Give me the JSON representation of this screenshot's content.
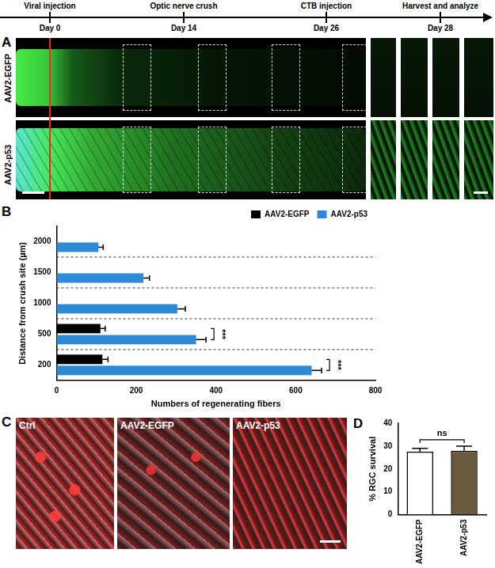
{
  "timeline": {
    "events": [
      {
        "label": "Viral injection",
        "day": "Day 0"
      },
      {
        "label": "Optic nerve crush",
        "day": "Day 14"
      },
      {
        "label": "CTB injection",
        "day": "Day 26"
      },
      {
        "label": "Harvest and analyze",
        "day": "Day 28"
      }
    ]
  },
  "panel_A": {
    "label": "A",
    "rows": [
      "AAV2-EGFP",
      "AAV2-p53"
    ]
  },
  "chart_data": [
    {
      "panel_label": "B",
      "type": "bar",
      "orientation": "horizontal",
      "categories": [
        "2000",
        "1500",
        "1000",
        "500",
        "200"
      ],
      "series": [
        {
          "name": "AAV2-EGFP",
          "color": "#000000",
          "values": [
            0,
            0,
            0,
            110,
            115
          ],
          "errors": [
            0,
            0,
            0,
            12,
            14
          ]
        },
        {
          "name": "AAV2-p53",
          "color": "#2e8ad6",
          "values": [
            105,
            218,
            303,
            350,
            640
          ],
          "errors": [
            12,
            15,
            20,
            25,
            25
          ]
        }
      ],
      "x_label": "Numbers of regenerating fibers",
      "y_label": "Distance from crush site (µm)",
      "xlim": [
        0,
        800
      ],
      "xticks": [
        0,
        200,
        400,
        600,
        800
      ],
      "legend": "top",
      "grid": false,
      "annotations": [
        {
          "text": "***",
          "category": "500"
        },
        {
          "text": "***",
          "category": "200"
        }
      ]
    },
    {
      "panel_label": "D",
      "type": "bar",
      "categories": [
        "AAV2-EGFP",
        "AAV2-p53"
      ],
      "values": [
        27.5,
        28
      ],
      "errors": [
        1.5,
        2
      ],
      "colors": [
        "#ffffff",
        "#6b5a3c"
      ],
      "y_label": "% RGC survival",
      "ylim": [
        0,
        40
      ],
      "yticks": [
        0,
        10,
        20,
        30,
        40
      ],
      "grid": false,
      "annotations": [
        {
          "text": "ns"
        }
      ]
    }
  ],
  "panel_C": {
    "label": "C",
    "images": [
      "Ctrl",
      "AAV2-EGFP",
      "AAV2-p53"
    ]
  }
}
